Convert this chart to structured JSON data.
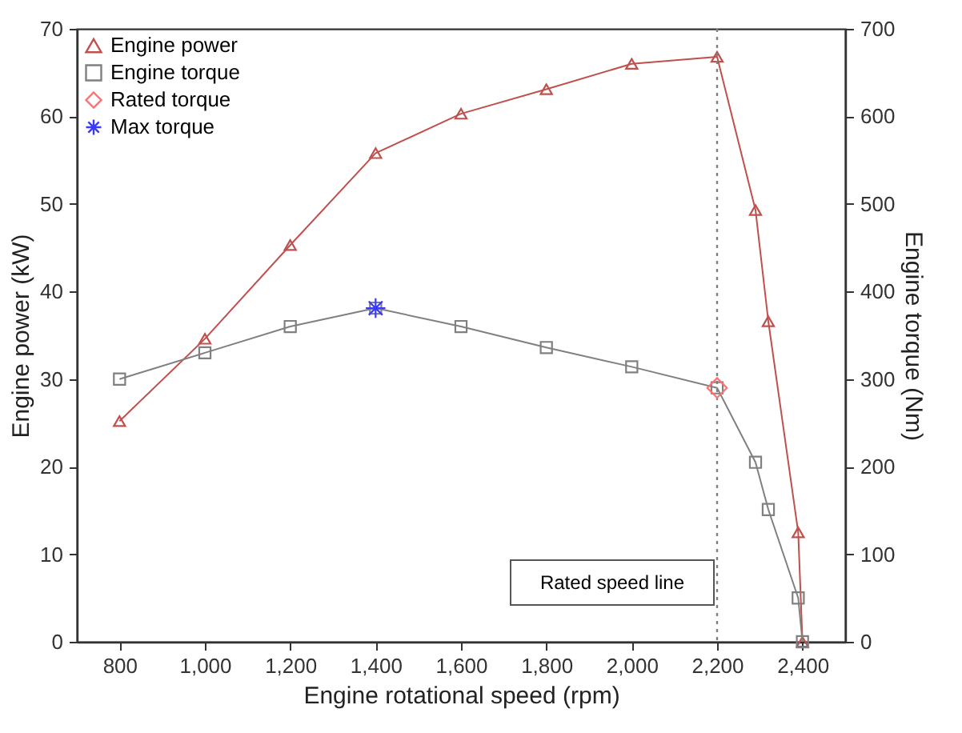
{
  "chart_data": {
    "type": "line",
    "xlabel": "Engine rotational speed (rpm)",
    "ylabel": "Engine power (kW)",
    "y2label": "Engine torque (Nm)",
    "x": [
      800,
      1000,
      1200,
      1400,
      1600,
      1800,
      2000,
      2200,
      2290,
      2320,
      2390,
      2400
    ],
    "series": [
      {
        "name": "Engine power",
        "color": "#c0504d",
        "marker": "triangle",
        "values": [
          25.2,
          34.6,
          45.3,
          55.8,
          60.3,
          63.1,
          66.0,
          66.8,
          49.3,
          36.6,
          12.5,
          0
        ]
      },
      {
        "name": "Engine torque",
        "axis": "y2",
        "color": "#808080",
        "marker": "square",
        "values": [
          300,
          330,
          360,
          381,
          360,
          336,
          314,
          290,
          205,
          151,
          50,
          0
        ]
      },
      {
        "name": "Rated torque",
        "type": "scatter",
        "axis": "y2",
        "color": "#ff7070",
        "marker": "diamond",
        "x": [
          2200
        ],
        "values": [
          290
        ]
      },
      {
        "name": "Max torque",
        "type": "scatter",
        "axis": "y2",
        "color": "#3a3aff",
        "marker": "cross",
        "x": [
          1400
        ],
        "values": [
          381
        ]
      }
    ],
    "xlim": [
      700,
      2500
    ],
    "xticks": [
      800,
      {
        "value": 1000,
        "label": "1,000"
      },
      {
        "value": 1200,
        "label": "1,200"
      },
      {
        "value": 1400,
        "label": "1,400"
      },
      {
        "value": 1600,
        "label": "1,600"
      },
      {
        "value": 1800,
        "label": "1,800"
      },
      {
        "value": 2000,
        "label": "2,000"
      },
      {
        "value": 2200,
        "label": "2,200"
      },
      {
        "value": 2400,
        "label": "2,400"
      }
    ],
    "ylim": [
      0,
      70
    ],
    "yticks": [
      0,
      10,
      20,
      30,
      40,
      50,
      60,
      70
    ],
    "y2lim": [
      0,
      700
    ],
    "y2ticks": [
      0,
      100,
      200,
      300,
      400,
      500,
      600,
      700
    ],
    "ref_lines": [
      {
        "axis": "x",
        "value": 2200,
        "color": "#808080",
        "line_style": "dotted"
      }
    ],
    "annotations": [
      "Rated speed line"
    ],
    "legend": "top left",
    "grid": false
  }
}
